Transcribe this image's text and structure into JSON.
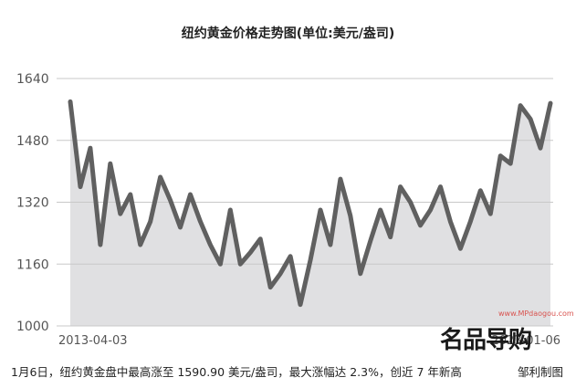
{
  "chart_data": {
    "type": "area",
    "title": "纽约黄金价格走势图(单位:美元/盎司)",
    "ylim": [
      1000,
      1640
    ],
    "yticks": [
      1000,
      1160,
      1320,
      1480,
      1640
    ],
    "grid": true,
    "x_labels": {
      "start": "2013-04-03",
      "end": "2023-01-06"
    },
    "series": [
      {
        "values": [
          1580,
          1360,
          1460,
          1210,
          1420,
          1290,
          1340,
          1210,
          1270,
          1385,
          1325,
          1255,
          1340,
          1270,
          1210,
          1160,
          1300,
          1160,
          1190,
          1225,
          1100,
          1135,
          1180,
          1055,
          1170,
          1300,
          1210,
          1380,
          1285,
          1135,
          1220,
          1300,
          1230,
          1360,
          1320,
          1260,
          1300,
          1360,
          1270,
          1200,
          1270,
          1350,
          1290,
          1440,
          1420,
          1570,
          1535,
          1460,
          1576
        ]
      }
    ]
  },
  "caption": "1月6日，纽约黄金盘中最高涨至 1590.90 美元/盎司，最大涨幅达 2.3%，创近 7 年新高",
  "credit": "邹利制图",
  "watermark": {
    "text": "名品导购",
    "url": "www.MPdaogou.com"
  },
  "colors": {
    "line": "#606060",
    "area": "#e0e0e2",
    "grid": "#c8c8c8"
  }
}
